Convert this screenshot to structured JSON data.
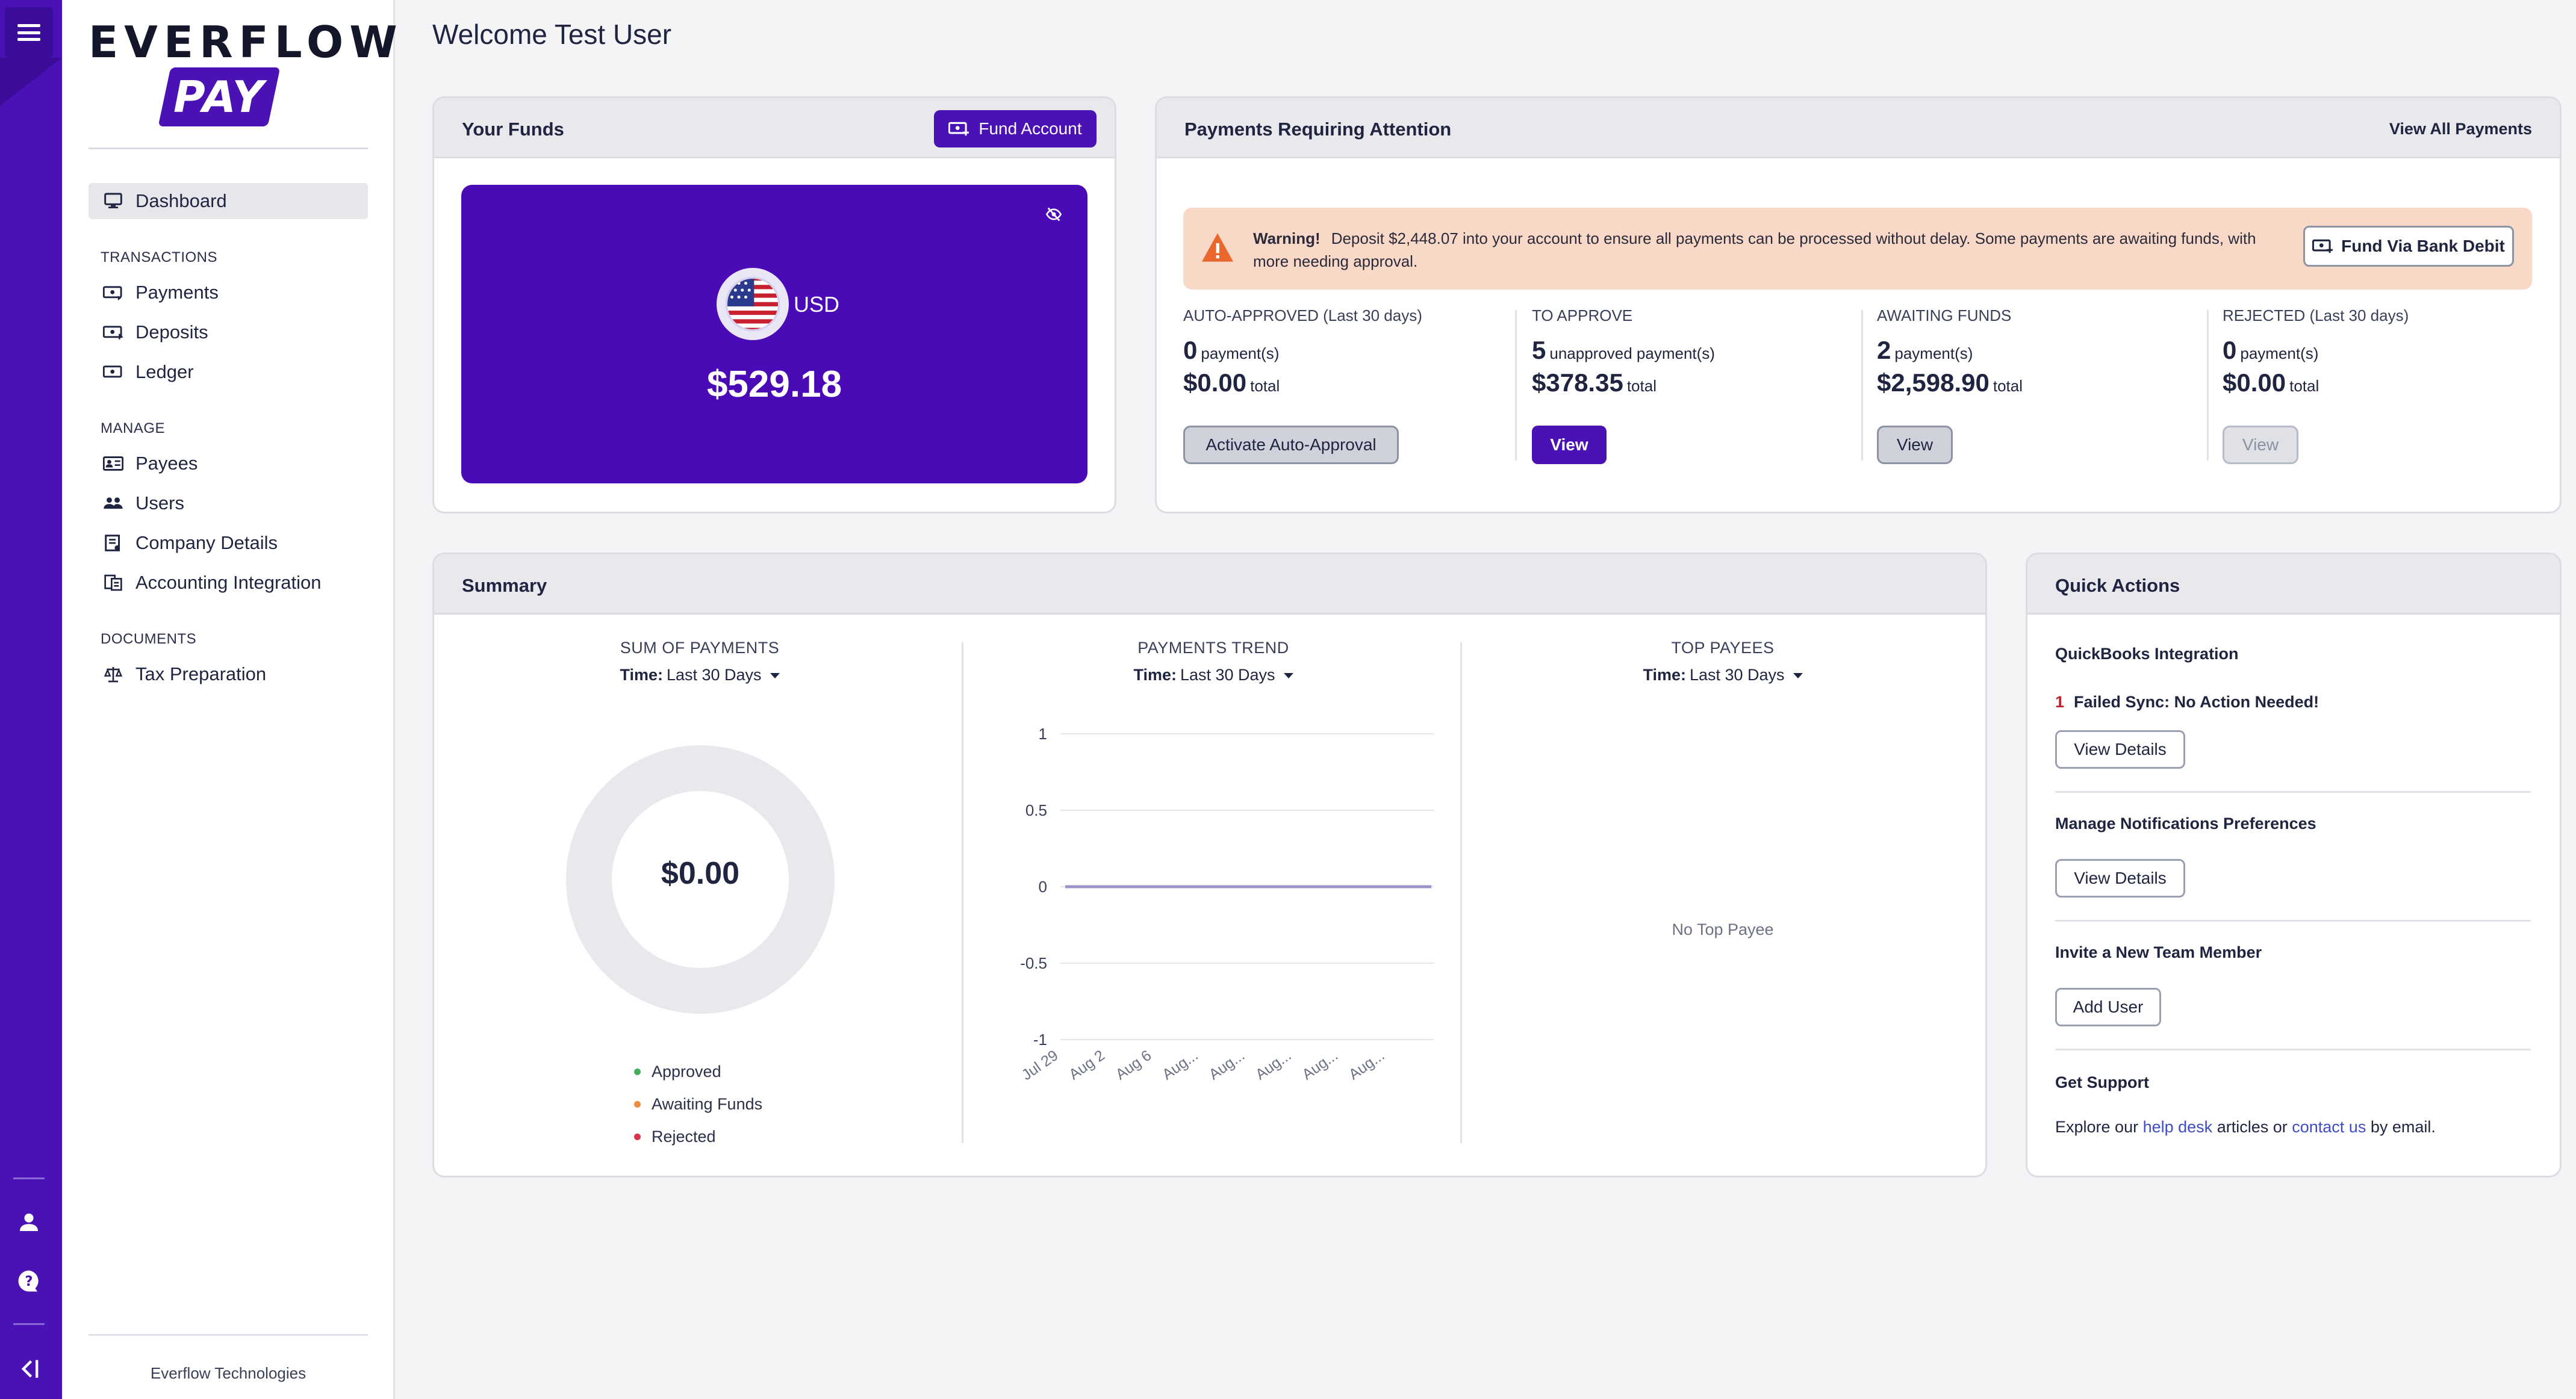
{
  "app": {
    "brand_top": "EVERFLOW",
    "brand_pay": "PAY",
    "company_footer": "Everflow Technologies"
  },
  "sidebar": {
    "items": [
      {
        "label": "Dashboard",
        "icon": "monitor-icon"
      },
      {
        "label": "Payments",
        "icon": "payments-icon"
      },
      {
        "label": "Deposits",
        "icon": "deposit-icon"
      },
      {
        "label": "Ledger",
        "icon": "ledger-icon"
      },
      {
        "label": "Payees",
        "icon": "payees-icon"
      },
      {
        "label": "Users",
        "icon": "users-icon"
      },
      {
        "label": "Company Details",
        "icon": "company-icon"
      },
      {
        "label": "Accounting Integration",
        "icon": "integration-icon"
      },
      {
        "label": "Tax Preparation",
        "icon": "scale-icon"
      }
    ],
    "sections": {
      "transactions": "TRANSACTIONS",
      "manage": "MANAGE",
      "documents": "DOCUMENTS"
    }
  },
  "main": {
    "welcome": "Welcome Test User"
  },
  "funds": {
    "title": "Your Funds",
    "fund_button": "Fund Account",
    "currency": "USD",
    "amount": "$529.18"
  },
  "attention": {
    "title": "Payments Requiring Attention",
    "view_all": "View All Payments",
    "warning_label": "Warning!",
    "warning_text": "Deposit $2,448.07 into your account to ensure all payments can be processed without delay. Some payments are awaiting funds, with more needing approval.",
    "bank_debit_button": "Fund Via Bank Debit",
    "stats": [
      {
        "label": "AUTO-APPROVED",
        "period": "(Last 30 days)",
        "count": "0",
        "count_suffix": "payment(s)",
        "total": "$0.00",
        "total_suffix": "total",
        "button": "Activate Auto-Approval"
      },
      {
        "label": "TO APPROVE",
        "period": "",
        "count": "5",
        "count_suffix": "unapproved payment(s)",
        "total": "$378.35",
        "total_suffix": "total",
        "button": "View"
      },
      {
        "label": "AWAITING FUNDS",
        "period": "",
        "count": "2",
        "count_suffix": "payment(s)",
        "total": "$2,598.90",
        "total_suffix": "total",
        "button": "View"
      },
      {
        "label": "REJECTED",
        "period": "(Last 30 days)",
        "count": "0",
        "count_suffix": "payment(s)",
        "total": "$0.00",
        "total_suffix": "total",
        "button": "View"
      }
    ]
  },
  "summary": {
    "title": "Summary",
    "time_label": "Time:",
    "time_value": "Last 30 Days",
    "sum_title": "SUM OF PAYMENTS",
    "donut_value": "$0.00",
    "legend": [
      {
        "label": "Approved",
        "color": "#3fb05a"
      },
      {
        "label": "Awaiting Funds",
        "color": "#f08a3c"
      },
      {
        "label": "Rejected",
        "color": "#d9344a"
      }
    ],
    "trend_title": "PAYMENTS TREND",
    "top_title": "TOP PAYEES",
    "no_top_payee": "No Top Payee"
  },
  "chart_data": {
    "type": "line",
    "title": "PAYMENTS TREND",
    "x": [
      "Jul 29",
      "Aug 2",
      "Aug 6",
      "Aug...",
      "Aug...",
      "Aug...",
      "Aug...",
      "Aug..."
    ],
    "series": [
      {
        "values": [
          0,
          0,
          0,
          0,
          0,
          0,
          0,
          0
        ]
      }
    ],
    "ylim": [
      -1,
      1
    ],
    "yticks": [
      "1",
      "0.5",
      "0",
      "-0.5",
      "-1"
    ],
    "grid": true,
    "line_color": "#9a95c8"
  },
  "quick_actions": {
    "title": "Quick Actions",
    "qb_title": "QuickBooks Integration",
    "failed_count": "1",
    "failed_text": "Failed Sync: No Action Needed!",
    "view_details": "View Details",
    "notif_title": "Manage Notifications Preferences",
    "invite_title": "Invite a New Team Member",
    "add_user": "Add User",
    "support_title": "Get Support",
    "support_pre": "Explore our",
    "help_desk": "help desk",
    "support_mid": "articles or",
    "contact_us": "contact us",
    "support_post": "by email."
  },
  "colors": {
    "brand": "#4a12b4",
    "warning_bg": "#f8d9c8",
    "warning_icon": "#e8672d"
  }
}
